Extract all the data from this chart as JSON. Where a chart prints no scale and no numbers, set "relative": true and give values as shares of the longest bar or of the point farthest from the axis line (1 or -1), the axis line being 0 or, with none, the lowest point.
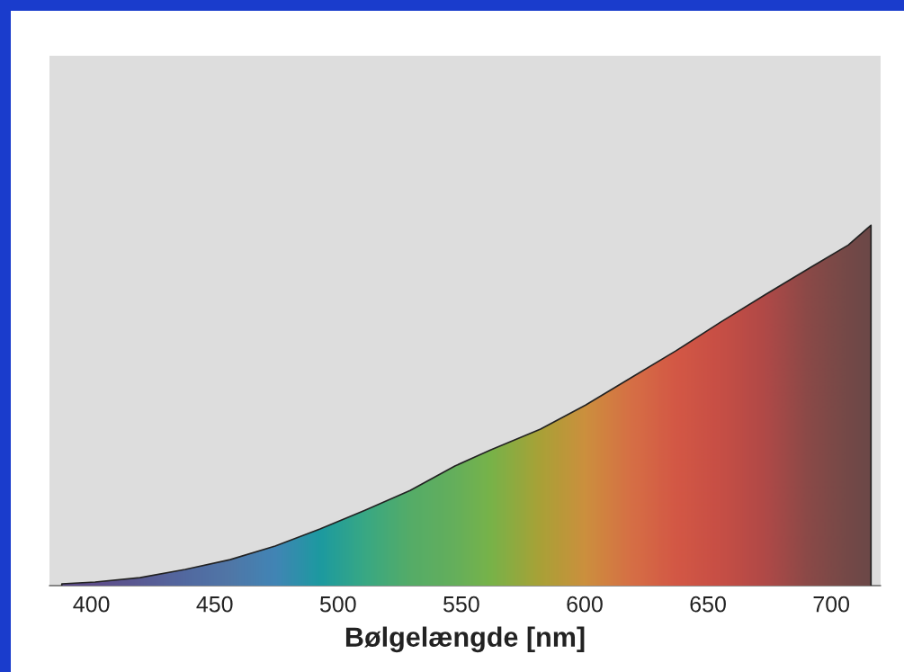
{
  "chart_data": {
    "type": "area",
    "relative": true,
    "xlabel": "Bølgelængde [nm]",
    "xlim": [
      383,
      720
    ],
    "xticks": [
      400,
      450,
      500,
      550,
      600,
      650,
      700
    ],
    "grid": false,
    "legend": false,
    "series": [
      {
        "x": [
          388.0,
          401.5,
          419.7,
          438.0,
          456.2,
          474.5,
          492.7,
          510.9,
          529.2,
          547.4,
          562.0,
          582.1,
          600.4,
          618.6,
          636.9,
          655.1,
          673.4,
          691.6,
          706.9,
          716.1
        ],
        "values": [
          0.005,
          0.01,
          0.022,
          0.045,
          0.072,
          0.11,
          0.157,
          0.209,
          0.264,
          0.332,
          0.377,
          0.434,
          0.501,
          0.576,
          0.651,
          0.731,
          0.808,
          0.883,
          0.945,
          1.0
        ],
        "colors": [
          "#55448a",
          "#5a4a90",
          "#56589a",
          "#4d68a8",
          "#4a78b0",
          "#3a88c0",
          "#10a0a8",
          "#30b088",
          "#50b468",
          "#62b85a",
          "#78bc45",
          "#b0a830",
          "#d89438",
          "#e37040",
          "#e05540",
          "#d24a40",
          "#b84442",
          "#8c4443",
          "#744443",
          "#6a4242"
        ]
      }
    ]
  }
}
